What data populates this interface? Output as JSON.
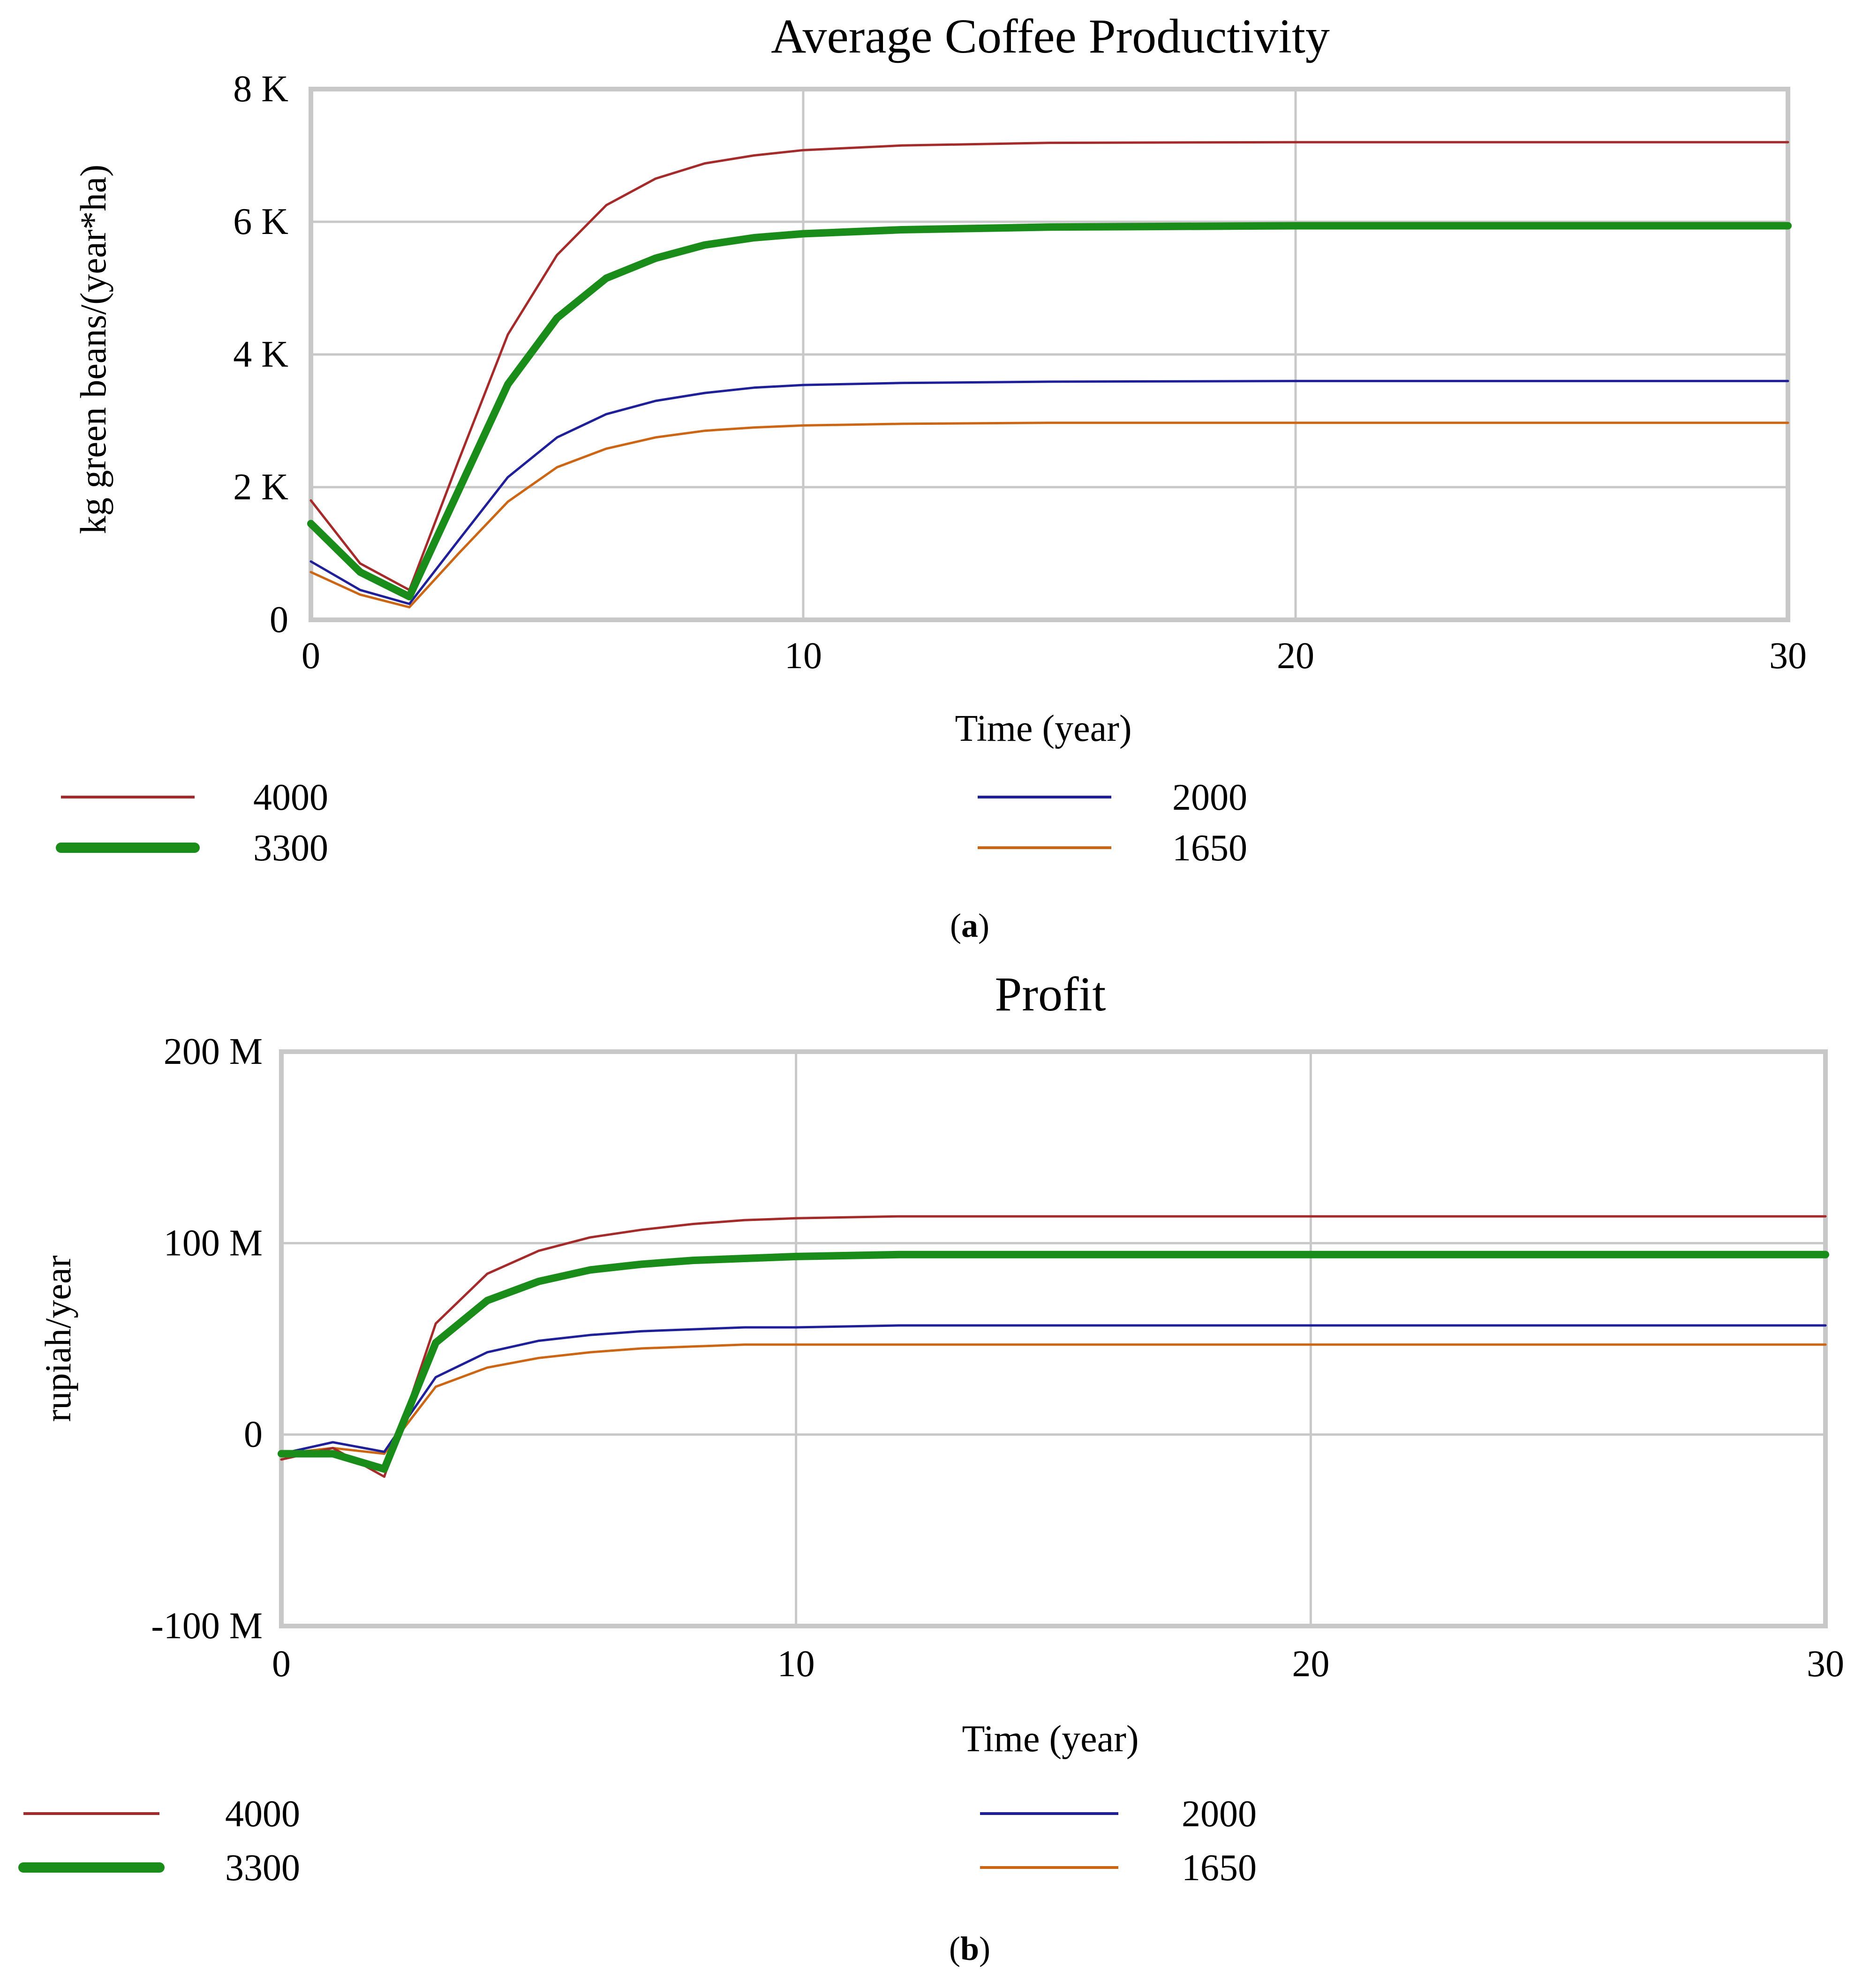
{
  "chart_data": [
    {
      "type": "line",
      "title": "Average Coffee Productivity",
      "xlabel": "Time (year)",
      "ylabel": "kg green beans/(year*ha)",
      "xlim": [
        0,
        30
      ],
      "ylim": [
        0,
        8000
      ],
      "x_ticks": [
        0,
        10,
        20,
        30
      ],
      "x_tick_labels": [
        "0",
        "10",
        "20",
        "30"
      ],
      "y_ticks": [
        0,
        2000,
        4000,
        6000,
        8000
      ],
      "y_tick_labels": [
        "0",
        "2 K",
        "4 K",
        "6 K",
        "8 K"
      ],
      "grid": true,
      "legend_position": "bottom",
      "caption": {
        "open": "(",
        "letter": "a",
        "close": ")"
      },
      "series": [
        {
          "name": "4000",
          "color": "#a52a2a",
          "weight": "thin",
          "x": [
            0,
            1,
            2,
            3,
            4,
            5,
            6,
            7,
            8,
            9,
            10,
            12,
            15,
            20,
            25,
            30
          ],
          "values": [
            1800,
            850,
            450,
            2400,
            4300,
            5500,
            6250,
            6650,
            6880,
            7000,
            7080,
            7150,
            7190,
            7200,
            7200,
            7200
          ]
        },
        {
          "name": "2000",
          "color": "#1f1f99",
          "weight": "thin",
          "x": [
            0,
            1,
            2,
            3,
            4,
            5,
            6,
            7,
            8,
            9,
            10,
            12,
            15,
            20,
            25,
            30
          ],
          "values": [
            880,
            450,
            240,
            1200,
            2150,
            2750,
            3100,
            3300,
            3420,
            3500,
            3540,
            3570,
            3590,
            3600,
            3600,
            3600
          ]
        },
        {
          "name": "3300",
          "color": "#1a8c1a",
          "weight": "thick",
          "x": [
            0,
            1,
            2,
            3,
            4,
            5,
            6,
            7,
            8,
            9,
            10,
            12,
            15,
            20,
            25,
            30
          ],
          "values": [
            1450,
            720,
            350,
            1950,
            3550,
            4550,
            5150,
            5450,
            5650,
            5760,
            5820,
            5880,
            5920,
            5940,
            5940,
            5940
          ]
        },
        {
          "name": "1650",
          "color": "#cc6614",
          "weight": "thin",
          "x": [
            0,
            1,
            2,
            3,
            4,
            5,
            6,
            7,
            8,
            9,
            10,
            12,
            15,
            20,
            25,
            30
          ],
          "values": [
            720,
            380,
            190,
            1000,
            1780,
            2300,
            2580,
            2750,
            2850,
            2900,
            2930,
            2955,
            2970,
            2970,
            2970,
            2970
          ]
        }
      ]
    },
    {
      "type": "line",
      "title": "Profit",
      "xlabel": "Time (year)",
      "ylabel": "rupiah/year",
      "xlim": [
        0,
        30
      ],
      "ylim": [
        -100,
        200
      ],
      "y_units": "M rupiah/year",
      "x_ticks": [
        0,
        10,
        20,
        30
      ],
      "x_tick_labels": [
        "0",
        "10",
        "20",
        "30"
      ],
      "y_ticks": [
        -100,
        0,
        100,
        200
      ],
      "y_tick_labels": [
        "-100 M",
        "0",
        "100 M",
        "200 M"
      ],
      "grid": true,
      "legend_position": "bottom",
      "caption": {
        "open": "(",
        "letter": "b",
        "close": ")"
      },
      "series": [
        {
          "name": "4000",
          "color": "#a52a2a",
          "weight": "thin",
          "x": [
            0,
            1,
            2,
            3,
            4,
            5,
            6,
            7,
            8,
            9,
            10,
            12,
            15,
            20,
            25,
            30
          ],
          "values": [
            -13,
            -7,
            -22,
            58,
            84,
            96,
            103,
            107,
            110,
            112,
            113,
            114,
            114,
            114,
            114,
            114
          ]
        },
        {
          "name": "2000",
          "color": "#1f1f99",
          "weight": "thin",
          "x": [
            0,
            1,
            2,
            3,
            4,
            5,
            6,
            7,
            8,
            9,
            10,
            12,
            15,
            20,
            25,
            30
          ],
          "values": [
            -10,
            -4,
            -9,
            30,
            43,
            49,
            52,
            54,
            55,
            56,
            56,
            57,
            57,
            57,
            57,
            57
          ]
        },
        {
          "name": "3300",
          "color": "#1a8c1a",
          "weight": "thick",
          "x": [
            0,
            1,
            2,
            3,
            4,
            5,
            6,
            7,
            8,
            9,
            10,
            12,
            15,
            20,
            25,
            30
          ],
          "values": [
            -10,
            -10,
            -18,
            48,
            70,
            80,
            86,
            89,
            91,
            92,
            93,
            94,
            94,
            94,
            94,
            94
          ]
        },
        {
          "name": "1650",
          "color": "#cc6614",
          "weight": "thin",
          "x": [
            0,
            1,
            2,
            3,
            4,
            5,
            6,
            7,
            8,
            9,
            10,
            12,
            15,
            20,
            25,
            30
          ],
          "values": [
            -10,
            -7,
            -10,
            25,
            35,
            40,
            43,
            45,
            46,
            47,
            47,
            47,
            47,
            47,
            47,
            47
          ]
        }
      ]
    }
  ]
}
